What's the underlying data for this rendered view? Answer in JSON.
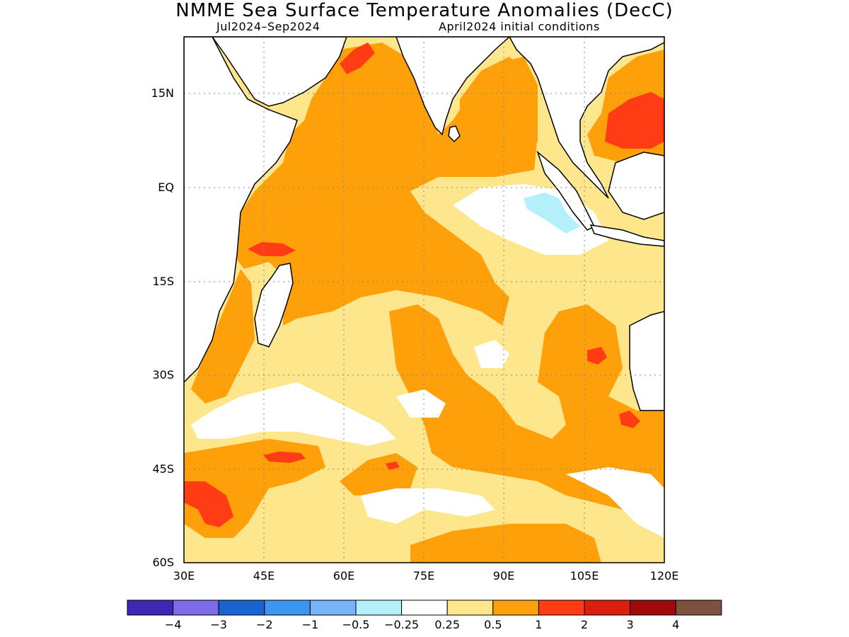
{
  "title": "NMME Sea Surface Temperature Anomalies (DecC)",
  "period": "Jul2024–Sep2024",
  "init": "April2024 initial conditions",
  "lat_labels": [
    "15N",
    "EQ",
    "15S",
    "30S",
    "45S",
    "60S"
  ],
  "lon_labels": [
    "30E",
    "45E",
    "60E",
    "75E",
    "90E",
    "105E",
    "120E"
  ],
  "colorbar": {
    "colors": [
      "#3c28b4",
      "#7d6ce8",
      "#1a64d2",
      "#3c96f0",
      "#78b4f8",
      "#b4f0fa",
      "#ffffff",
      "#fee68c",
      "#fda00a",
      "#ff3c14",
      "#dc1e0c",
      "#a00a0a",
      "#7d5040"
    ],
    "labels": [
      "−4",
      "−3",
      "−2",
      "−1",
      "−0.5",
      "−0.25",
      "0.25",
      "0.5",
      "1",
      "2",
      "3",
      "4"
    ]
  }
}
